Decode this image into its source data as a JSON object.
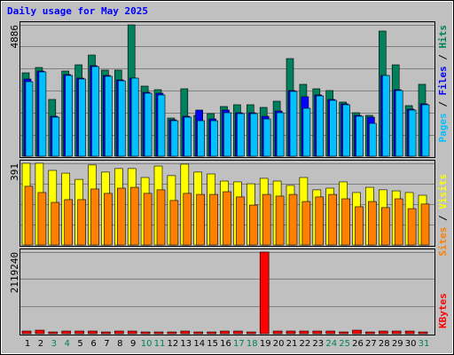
{
  "chart_data": [
    {
      "type": "bar",
      "title": "Daily usage for May 2025",
      "legend_separator": " / ",
      "ylim": [
        0,
        4886
      ],
      "yticks": [
        4886
      ],
      "series": [
        {
          "name": "Hits",
          "color": "#00805c",
          "values": [
            3103,
            3301,
            2113,
            3169,
            3400,
            3764,
            3202,
            3202,
            4886,
            2608,
            2476,
            1420,
            2509,
            1519,
            1585,
            1849,
            1915,
            1915,
            1816,
            2047,
            3632,
            2674,
            2509,
            2443,
            2014,
            1618,
            1519,
            4655,
            3400,
            1882,
            2674
          ]
        },
        {
          "name": "Files",
          "color": "#0000ff",
          "values": [
            2872,
            3169,
            1485,
            3037,
            2905,
            3367,
            3004,
            2839,
            2905,
            2377,
            2344,
            1353,
            1485,
            1717,
            1386,
            1717,
            1617,
            1617,
            1485,
            1683,
            2443,
            2212,
            2278,
            2113,
            1948,
            1518,
            1452,
            3004,
            2476,
            1750,
            1948
          ]
        },
        {
          "name": "Pages",
          "color": "#00c0ff",
          "values": [
            2773,
            3136,
            1452,
            3004,
            2872,
            3334,
            2971,
            2806,
            2905,
            2344,
            2278,
            1320,
            1452,
            1320,
            1320,
            1617,
            1584,
            1584,
            1386,
            1617,
            2410,
            1783,
            2245,
            2080,
            1915,
            1486,
            1221,
            3004,
            2443,
            1717,
            1915
          ]
        }
      ]
    },
    {
      "type": "bar",
      "legend_separator": " / ",
      "ylim": [
        0,
        391
      ],
      "yticks": [
        391
      ],
      "series": [
        {
          "name": "Visits",
          "color": "#ffff00",
          "values": [
            391,
            391,
            357,
            344,
            314,
            383,
            349,
            366,
            366,
            323,
            378,
            332,
            387,
            349,
            340,
            306,
            302,
            293,
            319,
            306,
            285,
            323,
            264,
            272,
            302,
            251,
            276,
            264,
            259,
            251,
            238
          ]
        },
        {
          "name": "Sites",
          "color": "#ff8000",
          "values": [
            281,
            251,
            204,
            217,
            217,
            268,
            247,
            272,
            276,
            247,
            264,
            213,
            247,
            242,
            242,
            255,
            230,
            191,
            242,
            234,
            242,
            208,
            230,
            242,
            221,
            183,
            208,
            179,
            221,
            174,
            196
          ]
        }
      ]
    },
    {
      "type": "bar",
      "ylim": [
        0,
        2119240
      ],
      "yticks": [
        2119240
      ],
      "categories": [
        "1",
        "2",
        "3",
        "4",
        "5",
        "6",
        "7",
        "8",
        "9",
        "10",
        "11",
        "12",
        "13",
        "14",
        "15",
        "16",
        "17",
        "18",
        "19",
        "20",
        "21",
        "22",
        "23",
        "24",
        "25",
        "26",
        "27",
        "28",
        "29",
        "30",
        "31"
      ],
      "weekend_days": [
        3,
        4,
        10,
        11,
        17,
        18,
        24,
        25,
        31
      ],
      "weekend_color": "#00805c",
      "series": [
        {
          "name": "KBytes",
          "color": "#ff0000",
          "values": [
            69000,
            92000,
            46000,
            69000,
            69000,
            69000,
            46000,
            69000,
            69000,
            46000,
            46000,
            46000,
            69000,
            46000,
            46000,
            69000,
            69000,
            46000,
            2119240,
            69000,
            69000,
            69000,
            69000,
            69000,
            46000,
            92000,
            46000,
            69000,
            69000,
            69000,
            46000
          ]
        }
      ]
    }
  ]
}
